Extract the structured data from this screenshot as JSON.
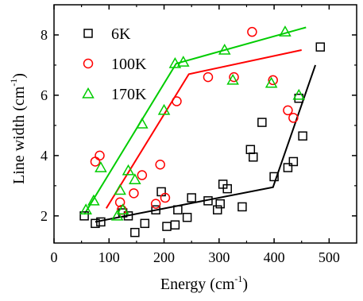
{
  "chart_data": {
    "type": "scatter",
    "xlabel": "Energy (cm",
    "xlabel_sup": "-1",
    "xlabel_tail": ")",
    "ylabel": "Line width (cm",
    "ylabel_sup": "-1",
    "ylabel_tail": ")",
    "xlim": [
      0,
      550
    ],
    "ylim": [
      1.1,
      9.0
    ],
    "xticks": [
      0,
      100,
      200,
      300,
      400,
      500
    ],
    "xtick_labels": [
      "0",
      "100",
      "200",
      "300",
      "400",
      "500"
    ],
    "yticks": [
      2,
      4,
      6,
      8
    ],
    "ytick_labels": [
      "2",
      "4",
      "6",
      "8"
    ],
    "grid": false,
    "legend_position": "top-left",
    "series": [
      {
        "name": "6K",
        "color": "#000000",
        "marker": "square",
        "points": [
          [
            55,
            2.0
          ],
          [
            75,
            1.75
          ],
          [
            85,
            1.8
          ],
          [
            125,
            2.1
          ],
          [
            135,
            2.0
          ],
          [
            147,
            1.45
          ],
          [
            165,
            1.75
          ],
          [
            185,
            2.2
          ],
          [
            195,
            2.8
          ],
          [
            205,
            1.65
          ],
          [
            220,
            1.7
          ],
          [
            225,
            2.2
          ],
          [
            242,
            1.95
          ],
          [
            250,
            2.6
          ],
          [
            280,
            2.5
          ],
          [
            297,
            2.2
          ],
          [
            302,
            2.4
          ],
          [
            307,
            3.05
          ],
          [
            315,
            2.9
          ],
          [
            342,
            2.3
          ],
          [
            357,
            4.2
          ],
          [
            362,
            3.95
          ],
          [
            378,
            5.1
          ],
          [
            400,
            3.3
          ],
          [
            425,
            3.6
          ],
          [
            435,
            3.8
          ],
          [
            445,
            5.9
          ],
          [
            452,
            4.65
          ],
          [
            484,
            7.6
          ]
        ],
        "fit": [
          [
            75,
            1.8
          ],
          [
            398,
            2.95
          ],
          [
            475,
            7.0
          ]
        ]
      },
      {
        "name": "100K",
        "color": "#ff0000",
        "marker": "circle",
        "points": [
          [
            75,
            3.8
          ],
          [
            83,
            4.0
          ],
          [
            120,
            2.45
          ],
          [
            123,
            2.2
          ],
          [
            145,
            2.75
          ],
          [
            160,
            3.35
          ],
          [
            185,
            2.4
          ],
          [
            193,
            3.7
          ],
          [
            202,
            2.6
          ],
          [
            223,
            5.8
          ],
          [
            280,
            6.6
          ],
          [
            327,
            6.6
          ],
          [
            360,
            8.1
          ],
          [
            398,
            6.5
          ],
          [
            425,
            5.5
          ],
          [
            435,
            5.25
          ]
        ],
        "fit": [
          [
            95,
            2.25
          ],
          [
            245,
            6.7
          ],
          [
            450,
            7.5
          ]
        ]
      },
      {
        "name": "170K",
        "color": "#00cc00",
        "marker": "triangle",
        "points": [
          [
            58,
            2.2
          ],
          [
            72,
            2.5
          ],
          [
            85,
            3.6
          ],
          [
            115,
            2.0
          ],
          [
            120,
            2.85
          ],
          [
            125,
            2.2
          ],
          [
            135,
            3.5
          ],
          [
            147,
            3.2
          ],
          [
            160,
            5.05
          ],
          [
            200,
            5.5
          ],
          [
            220,
            7.05
          ],
          [
            235,
            7.1
          ],
          [
            310,
            7.5
          ],
          [
            325,
            6.5
          ],
          [
            395,
            6.4
          ],
          [
            420,
            8.1
          ],
          [
            445,
            6.0
          ]
        ],
        "fit": [
          [
            55,
            2.05
          ],
          [
            222,
            7.05
          ],
          [
            458,
            8.25
          ]
        ]
      }
    ]
  }
}
